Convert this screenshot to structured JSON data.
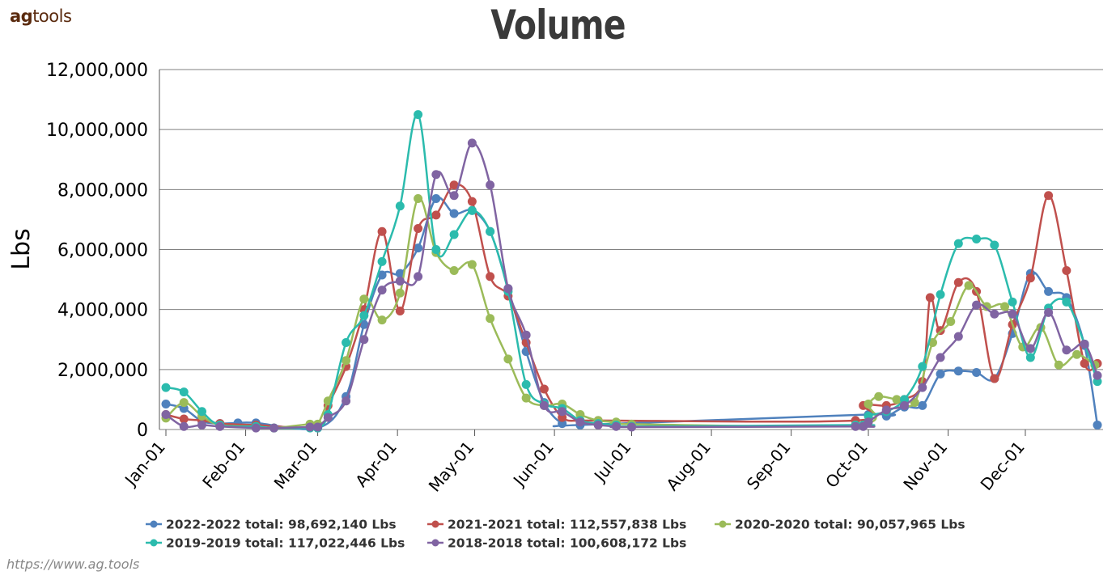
{
  "brand": {
    "prefix": "ag",
    "suffix": "tools"
  },
  "url": "https://www.ag.tools",
  "chart_data": {
    "type": "line",
    "title": "Volume",
    "ylabel": "Lbs",
    "xlabel": "",
    "ylim": [
      0,
      12000000
    ],
    "yticks": [
      0,
      2000000,
      4000000,
      6000000,
      8000000,
      10000000,
      12000000
    ],
    "ytick_labels": [
      "0",
      "2,000,000",
      "4,000,000",
      "6,000,000",
      "8,000,000",
      "10,000,000",
      "12,000,000"
    ],
    "xlim": [
      "01-01",
      "12-29"
    ],
    "xtick_labels": [
      "Jan-01",
      "Feb-01",
      "Mar-01",
      "Apr-01",
      "May-01",
      "Jun-01",
      "Jul-01",
      "Aug-01",
      "Sep-01",
      "Oct-01",
      "Nov-01",
      "Dec-01"
    ],
    "xtick_dates": [
      "01-01",
      "02-01",
      "03-01",
      "04-01",
      "05-01",
      "06-01",
      "07-01",
      "08-01",
      "09-01",
      "10-01",
      "11-01",
      "12-01"
    ],
    "grid": true,
    "legend": "bottom",
    "series": [
      {
        "name": "2022-2022 total: 98,692,140 Lbs",
        "color": "#4f81bd",
        "x": [
          "01-01",
          "01-08",
          "01-15",
          "01-22",
          "01-29",
          "02-05",
          "03-01",
          "03-12",
          "03-19",
          "03-26",
          "04-02",
          "04-09",
          "04-16",
          "04-23",
          "04-30",
          "05-07",
          "05-14",
          "05-21",
          "05-28",
          "06-04",
          "06-11",
          "10-01",
          "10-08",
          "10-15",
          "10-22",
          "10-29",
          "11-05",
          "11-12",
          "11-19",
          "11-26",
          "12-03",
          "12-10",
          "12-17",
          "12-24",
          "12-29"
        ],
        "y": [
          850000,
          700000,
          280000,
          200000,
          220000,
          220000,
          50000,
          1100000,
          3500000,
          5150000,
          5200000,
          6050000,
          7700000,
          7200000,
          7300000,
          6600000,
          4700000,
          2600000,
          900000,
          200000,
          150000,
          500000,
          450000,
          750000,
          800000,
          1850000,
          1950000,
          1900000,
          1700000,
          3200000,
          5200000,
          4600000,
          4400000,
          2800000,
          150000
        ]
      },
      {
        "name": "2021-2021 total: 112,557,838 Lbs",
        "color": "#c0504d",
        "x": [
          "01-01",
          "01-08",
          "01-15",
          "01-22",
          "02-05",
          "03-01",
          "03-05",
          "03-12",
          "03-19",
          "03-26",
          "04-02",
          "04-09",
          "04-16",
          "04-23",
          "04-30",
          "05-07",
          "05-14",
          "05-21",
          "05-28",
          "06-04",
          "06-11",
          "06-18",
          "09-26",
          "09-29",
          "10-08",
          "10-15",
          "10-22",
          "10-25",
          "10-29",
          "11-05",
          "11-12",
          "11-19",
          "11-26",
          "12-03",
          "12-10",
          "12-17",
          "12-24",
          "12-29"
        ],
        "y": [
          500000,
          350000,
          300000,
          200000,
          150000,
          100000,
          800000,
          2100000,
          4000000,
          6600000,
          3950000,
          6700000,
          7150000,
          8150000,
          7600000,
          5100000,
          4450000,
          2900000,
          1350000,
          400000,
          300000,
          300000,
          300000,
          800000,
          800000,
          1000000,
          1600000,
          4400000,
          3300000,
          4900000,
          4600000,
          1700000,
          3500000,
          5050000,
          7800000,
          5300000,
          2200000,
          2200000
        ]
      },
      {
        "name": "2020-2020 total: 90,057,965 Lbs",
        "color": "#9bbb59",
        "x": [
          "01-01",
          "01-08",
          "01-15",
          "01-22",
          "02-05",
          "02-12",
          "02-26",
          "03-01",
          "03-05",
          "03-12",
          "03-19",
          "03-26",
          "04-02",
          "04-09",
          "04-16",
          "04-23",
          "04-30",
          "05-07",
          "05-14",
          "05-21",
          "05-28",
          "06-04",
          "06-11",
          "06-18",
          "06-25",
          "07-01",
          "09-26",
          "10-01",
          "10-05",
          "10-12",
          "10-19",
          "10-26",
          "11-02",
          "11-09",
          "11-16",
          "11-23",
          "11-30",
          "12-07",
          "12-14",
          "12-21",
          "12-28"
        ],
        "y": [
          380000,
          900000,
          450000,
          150000,
          100000,
          50000,
          180000,
          180000,
          950000,
          2300000,
          4350000,
          3650000,
          4550000,
          7700000,
          5900000,
          5300000,
          5500000,
          3700000,
          2350000,
          1050000,
          800000,
          850000,
          500000,
          300000,
          250000,
          180000,
          150000,
          850000,
          1100000,
          1000000,
          900000,
          2900000,
          3600000,
          4800000,
          4100000,
          4100000,
          2750000,
          3400000,
          2150000,
          2500000,
          2150000
        ]
      },
      {
        "name": "2019-2019 total: 117,022,446 Lbs",
        "color": "#2bbbad",
        "x": [
          "01-01",
          "01-08",
          "01-15",
          "01-22",
          "02-05",
          "02-12",
          "02-26",
          "03-01",
          "03-05",
          "03-12",
          "03-19",
          "03-26",
          "04-02",
          "04-09",
          "04-16",
          "04-23",
          "04-30",
          "05-07",
          "05-14",
          "05-21",
          "05-28",
          "06-04",
          "06-11",
          "06-18",
          "06-25",
          "07-01",
          "09-26",
          "09-29",
          "10-01",
          "10-08",
          "10-15",
          "10-22",
          "10-29",
          "11-05",
          "11-12",
          "11-19",
          "11-26",
          "12-03",
          "12-10",
          "12-17",
          "12-24",
          "12-29"
        ],
        "y": [
          1400000,
          1250000,
          600000,
          150000,
          100000,
          50000,
          50000,
          50000,
          500000,
          2900000,
          3800000,
          5600000,
          7450000,
          10500000,
          6000000,
          6500000,
          7300000,
          6600000,
          4600000,
          1500000,
          850000,
          700000,
          300000,
          200000,
          150000,
          100000,
          150000,
          150000,
          450000,
          600000,
          1000000,
          2100000,
          4500000,
          6200000,
          6350000,
          6150000,
          4250000,
          2400000,
          4050000,
          4250000,
          2850000,
          1600000
        ]
      },
      {
        "name": "2018-2018 total: 100,608,172 Lbs",
        "color": "#8064a2",
        "x": [
          "01-01",
          "01-08",
          "01-15",
          "01-22",
          "02-05",
          "02-12",
          "02-26",
          "03-01",
          "03-05",
          "03-12",
          "03-19",
          "03-26",
          "04-02",
          "04-09",
          "04-16",
          "04-23",
          "04-30",
          "05-07",
          "05-14",
          "05-21",
          "05-28",
          "06-04",
          "06-11",
          "06-18",
          "06-25",
          "07-01",
          "09-26",
          "09-29",
          "10-01",
          "10-08",
          "10-15",
          "10-22",
          "10-29",
          "11-05",
          "11-12",
          "11-19",
          "11-26",
          "12-03",
          "12-10",
          "12-17",
          "12-24",
          "12-29"
        ],
        "y": [
          500000,
          100000,
          150000,
          100000,
          50000,
          50000,
          80000,
          80000,
          400000,
          950000,
          3000000,
          4650000,
          4950000,
          5100000,
          8500000,
          7800000,
          9550000,
          8150000,
          4700000,
          3150000,
          800000,
          600000,
          250000,
          150000,
          100000,
          80000,
          100000,
          100000,
          250000,
          650000,
          800000,
          1400000,
          2400000,
          3100000,
          4150000,
          3850000,
          3850000,
          2700000,
          3900000,
          2650000,
          2850000,
          1800000
        ]
      }
    ]
  }
}
